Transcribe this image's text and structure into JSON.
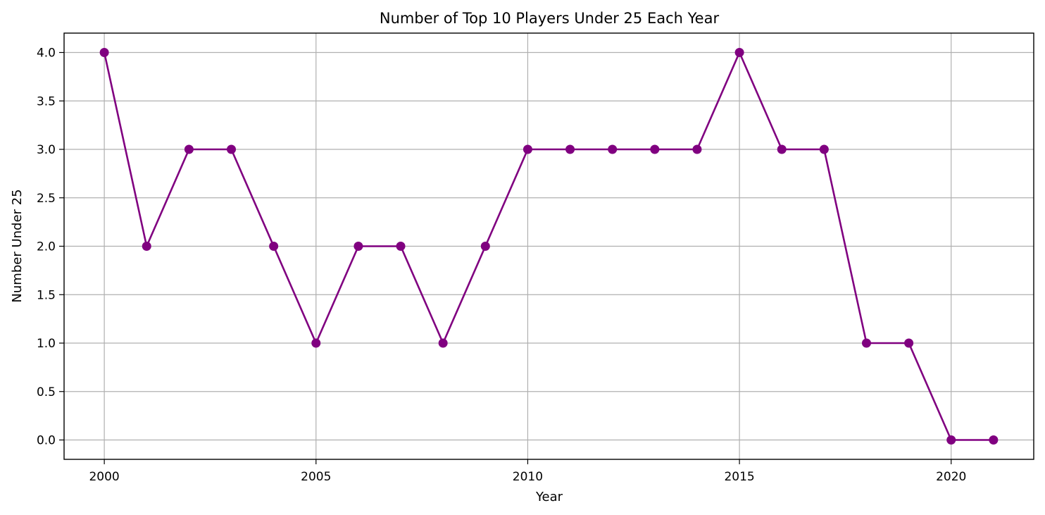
{
  "chart_data": {
    "type": "line",
    "title": "Number of Top 10 Players Under 25 Each Year",
    "xlabel": "Year",
    "ylabel": "Number Under 25",
    "x": [
      2000,
      2001,
      2002,
      2003,
      2004,
      2005,
      2006,
      2007,
      2008,
      2009,
      2010,
      2011,
      2012,
      2013,
      2014,
      2015,
      2016,
      2017,
      2018,
      2019,
      2020,
      2021
    ],
    "series": [
      {
        "values": [
          4,
          2,
          3,
          3,
          2,
          1,
          2,
          2,
          1,
          2,
          3,
          3,
          3,
          3,
          3,
          4,
          3,
          3,
          1,
          1,
          0,
          0
        ],
        "color": "#800080",
        "marker": "circle"
      }
    ],
    "xlim": [
      1999.05,
      2021.95
    ],
    "ylim": [
      -0.2,
      4.2
    ],
    "xticks": [
      2000,
      2005,
      2010,
      2015,
      2020
    ],
    "xtick_labels": [
      "2000",
      "2005",
      "2010",
      "2015",
      "2020"
    ],
    "yticks": [
      0,
      0.5,
      1,
      1.5,
      2,
      2.5,
      3,
      3.5,
      4
    ],
    "ytick_labels": [
      "0.0",
      "0.5",
      "1.0",
      "1.5",
      "2.0",
      "2.5",
      "3.0",
      "3.5",
      "4.0"
    ],
    "grid": true,
    "legend": "none"
  }
}
